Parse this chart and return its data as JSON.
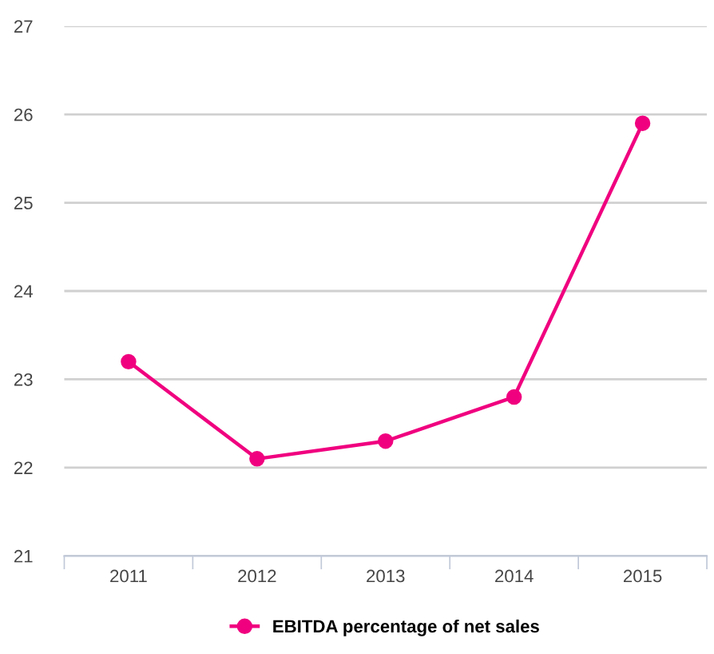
{
  "chart_data": {
    "type": "line",
    "categories": [
      "2011",
      "2012",
      "2013",
      "2014",
      "2015"
    ],
    "series": [
      {
        "name": "EBITDA percentage of net sales",
        "color": "#f0007f",
        "values": [
          23.2,
          22.1,
          22.3,
          22.8,
          25.9
        ]
      }
    ],
    "ylim": [
      21,
      27
    ],
    "yticks": [
      21,
      22,
      23,
      24,
      25,
      26,
      27
    ],
    "grid": "y",
    "legend": "bottom",
    "marker": "circle",
    "line_style": "solid"
  }
}
